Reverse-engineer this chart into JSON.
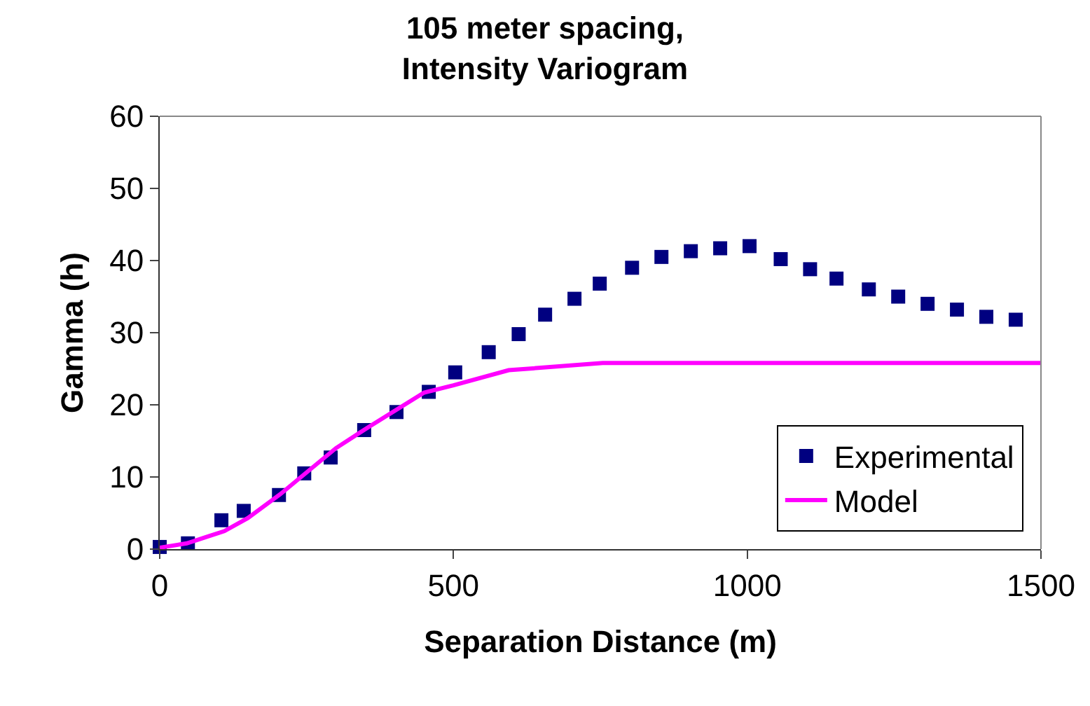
{
  "chart_data": {
    "type": "scatter",
    "title": "105 meter spacing,\nIntensity Variogram",
    "xlabel": "Separation Distance (m)",
    "ylabel": "Gamma (h)",
    "xlim": [
      0,
      1500
    ],
    "xticks": [
      0,
      500,
      1000,
      1500
    ],
    "ylim": [
      0,
      60
    ],
    "yticks": [
      0,
      10,
      20,
      30,
      40,
      50,
      60
    ],
    "grid": false,
    "legend": "bottom right",
    "series": [
      {
        "name": "Experimental",
        "marker": "square",
        "color": "#000080",
        "x": [
          0,
          48,
          105,
          143,
          203,
          246,
          291,
          348,
          403,
          458,
          503,
          560,
          611,
          656,
          706,
          749,
          804,
          854,
          904,
          954,
          1004,
          1057,
          1107,
          1152,
          1207,
          1257,
          1307,
          1357,
          1407,
          1457
        ],
        "values": [
          0.3,
          0.8,
          4,
          5.3,
          7.5,
          10.5,
          12.7,
          16.5,
          19,
          21.8,
          24.5,
          27.3,
          29.8,
          32.5,
          34.7,
          36.8,
          39,
          40.5,
          41.3,
          41.7,
          42,
          40.2,
          38.8,
          37.5,
          36,
          35,
          34,
          33.2,
          32.2,
          31.8
        ]
      },
      {
        "name": "Model",
        "type": "line",
        "marker": "none",
        "line_style": "solid",
        "color": "#ff00ff",
        "x": [
          0,
          46,
          110,
          150,
          205,
          300,
          355,
          450,
          500,
          594,
          754,
          1500
        ],
        "values": [
          0.2,
          0.8,
          2.5,
          4.3,
          7.6,
          14,
          16.9,
          21.7,
          22.7,
          24.8,
          25.8,
          25.8
        ]
      }
    ]
  }
}
